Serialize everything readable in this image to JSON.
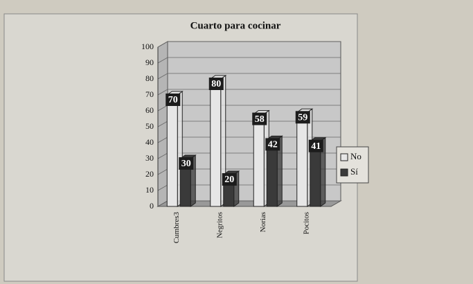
{
  "chart_data": {
    "type": "bar",
    "title": "Cuarto para cocinar",
    "categories": [
      "Cumbres3",
      "Negritos",
      "Norias",
      "Pocitos"
    ],
    "series": [
      {
        "name": "No",
        "color": "#e6e6e6",
        "values": [
          70,
          80,
          58,
          59
        ]
      },
      {
        "name": "Sí",
        "color": "#3a3a3a",
        "values": [
          30,
          20,
          42,
          41
        ]
      }
    ],
    "ylim": [
      0,
      100
    ],
    "yticks": [
      0,
      10,
      20,
      30,
      40,
      50,
      60,
      70,
      80,
      90,
      100
    ],
    "grid": true,
    "legend": "right"
  }
}
